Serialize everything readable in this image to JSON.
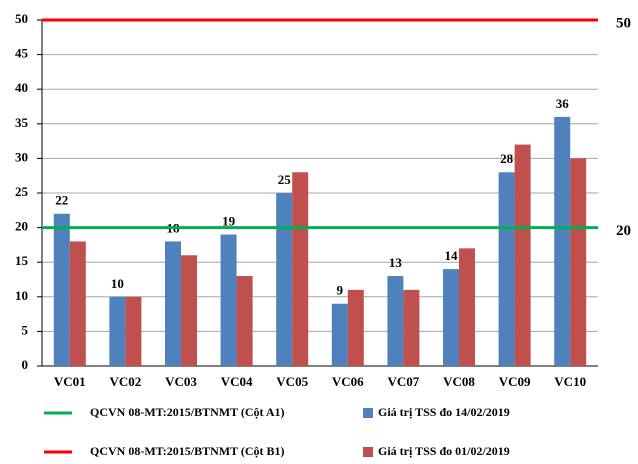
{
  "chart_data": {
    "type": "bar",
    "categories": [
      "VC01",
      "VC02",
      "VC03",
      "VC04",
      "VC05",
      "VC06",
      "VC07",
      "VC08",
      "VC09",
      "VC10"
    ],
    "series": [
      {
        "name": "Giá trị TSS  đo 14/02/2019",
        "color": "#4f81bd",
        "values": [
          22,
          10,
          18,
          19,
          25,
          9,
          13,
          14,
          28,
          36
        ]
      },
      {
        "name": "Giá trị TSS  đo 01/02/2019",
        "color": "#c0504d",
        "values": [
          18,
          10,
          16,
          13,
          28,
          11,
          11,
          17,
          32,
          30
        ]
      }
    ],
    "reference_lines": [
      {
        "name": "QCVN 08-MT:2015/BTNMT  (Cột A1)",
        "value": 20,
        "color": "#00b050"
      },
      {
        "name": "QCVN 08-MT:2015/BTNMT  (Cột B1)",
        "value": 50,
        "color": "#ff0000"
      }
    ],
    "ylim": [
      0,
      50
    ],
    "yticks": [
      0,
      5,
      10,
      15,
      20,
      25,
      30,
      35,
      40,
      45,
      50
    ],
    "grid": true
  }
}
